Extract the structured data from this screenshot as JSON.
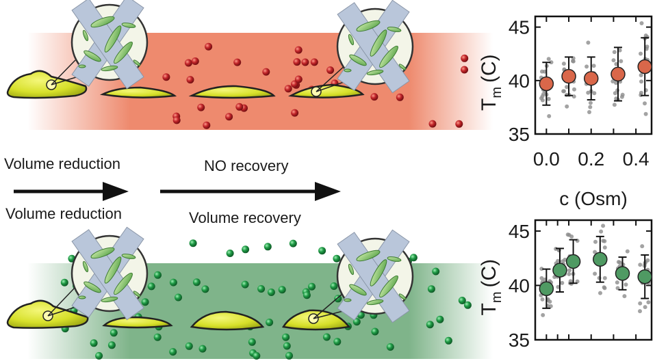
{
  "labels": {
    "top_arrow_left": "Volume reduction",
    "top_arrow_right": "NO recovery",
    "bottom_arrow_left": "Volume reduction",
    "bottom_arrow_right": "Volume recovery"
  },
  "colors": {
    "top_band": "#ee8a6e",
    "bottom_band": "#7fb48a",
    "red_particle": "#c2262a",
    "green_particle": "#1f9a45",
    "cell_fill": "#d7e02a",
    "red_marker": "#d9674a",
    "green_marker": "#4f9a63",
    "scatter": "#8c8c8c"
  },
  "chart_data": [
    {
      "type": "scatter",
      "title": "",
      "xlabel": "c (Osm)",
      "ylabel_main": "T",
      "ylabel_sub": "m",
      "ylabel_unit": "(C)",
      "x_tick_labels": [
        "0.0",
        "0.2",
        "0.4"
      ],
      "x_ticks": [
        0.0,
        0.1,
        0.2,
        0.3,
        0.4
      ],
      "xlim": [
        -0.05,
        0.47
      ],
      "ylim": [
        35,
        46
      ],
      "y_ticks": [
        35,
        40,
        45
      ],
      "y_tick_labels": [
        "35",
        "40",
        "45"
      ],
      "series": [
        {
          "name": "mean",
          "x": [
            0.0,
            0.1,
            0.2,
            0.32,
            0.44
          ],
          "y": [
            39.7,
            40.4,
            40.2,
            40.6,
            41.3
          ],
          "err": [
            2.0,
            1.8,
            2.0,
            2.5,
            2.7
          ]
        }
      ]
    },
    {
      "type": "scatter",
      "title": "",
      "xlabel": "",
      "ylabel_main": "T",
      "ylabel_sub": "m",
      "ylabel_unit": "(C)",
      "x_tick_labels": [],
      "x_ticks": [
        0.0,
        0.05,
        0.1,
        0.2,
        0.3,
        0.4
      ],
      "xlim": [
        -0.05,
        0.47
      ],
      "ylim": [
        35,
        46
      ],
      "y_ticks": [
        35,
        40,
        45
      ],
      "y_tick_labels": [
        "35",
        "40",
        "45"
      ],
      "series": [
        {
          "name": "mean",
          "x": [
            0.0,
            0.06,
            0.12,
            0.24,
            0.34,
            0.44
          ],
          "y": [
            39.7,
            41.4,
            42.2,
            42.4,
            41.1,
            40.8
          ],
          "err": [
            1.8,
            2.0,
            2.0,
            2.1,
            1.5,
            2.0
          ]
        }
      ]
    }
  ]
}
